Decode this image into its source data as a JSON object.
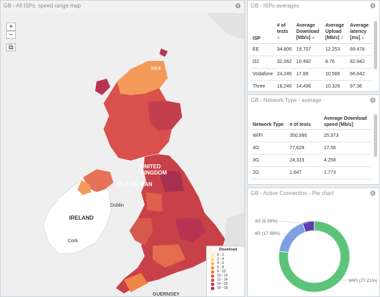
{
  "map": {
    "title": "GB - All ISPs, speed range map",
    "zoom_in": "+",
    "zoom_out": "−",
    "labels": {
      "united_kingdom": "UNITED\nKINGDOM",
      "isle_of_man": "ISLE OF MAN",
      "ireland": "IRELAND",
      "dublin": "Dublin",
      "cork": "Cork",
      "wick": "Wick",
      "guernsey": "GUERNSEY"
    },
    "legend": {
      "title": "Download",
      "items": [
        {
          "label": "0 - 2",
          "color": "#fde9a8"
        },
        {
          "label": "2 - 4",
          "color": "#fdd27a"
        },
        {
          "label": "4 - 6",
          "color": "#fbb555"
        },
        {
          "label": "6 - 8",
          "color": "#f7953f"
        },
        {
          "label": "8 - 10",
          "color": "#f07a3b"
        },
        {
          "label": "10 - 12",
          "color": "#e65f3c"
        },
        {
          "label": "12 - 14",
          "color": "#d8483f"
        },
        {
          "label": "14 - 16",
          "color": "#c43a48"
        },
        {
          "label": "16 - 18",
          "color": "#a8304f"
        }
      ]
    }
  },
  "isp_table": {
    "title": "GB - ISPs averages",
    "headers": [
      "ISP",
      "# of tests",
      "Average Download [Mb/s]",
      "Average Upload [Mb/s]",
      "Average latency [ms]"
    ],
    "rows": [
      [
        "EE",
        "34,806",
        "19.707",
        "12.253",
        "69.478"
      ],
      [
        "O2",
        "32,062",
        "10.492",
        "8.76",
        "82.942"
      ],
      [
        "Vodafone",
        "24,245",
        "17.68",
        "10.566",
        "66.842"
      ],
      [
        "Three",
        "18,246",
        "14.436",
        "10.326",
        "97.36"
      ]
    ]
  },
  "network_table": {
    "title": "GB - Network Type - average",
    "headers": [
      "Network Type",
      "# of tests",
      "Average Download speed [Mb/s]"
    ],
    "rows": [
      [
        "WIFI",
        "350,996",
        "25.973"
      ],
      [
        "4G",
        "77,629",
        "17.56"
      ],
      [
        "3G",
        "24,313",
        "4.258"
      ],
      [
        "2G",
        "1,647",
        "1.773"
      ]
    ]
  },
  "pie": {
    "title": "GB - Active Connection - Pie chart",
    "slices": [
      {
        "label": "WIFI (77.21%)",
        "value": 77.21,
        "color": "#5cc47a"
      },
      {
        "label": "4G (17.08%)",
        "value": 17.08,
        "color": "#7f9fe3"
      },
      {
        "label": "3G (5.35%)",
        "value": 5.35,
        "color": "#5b3fb0"
      }
    ]
  }
}
